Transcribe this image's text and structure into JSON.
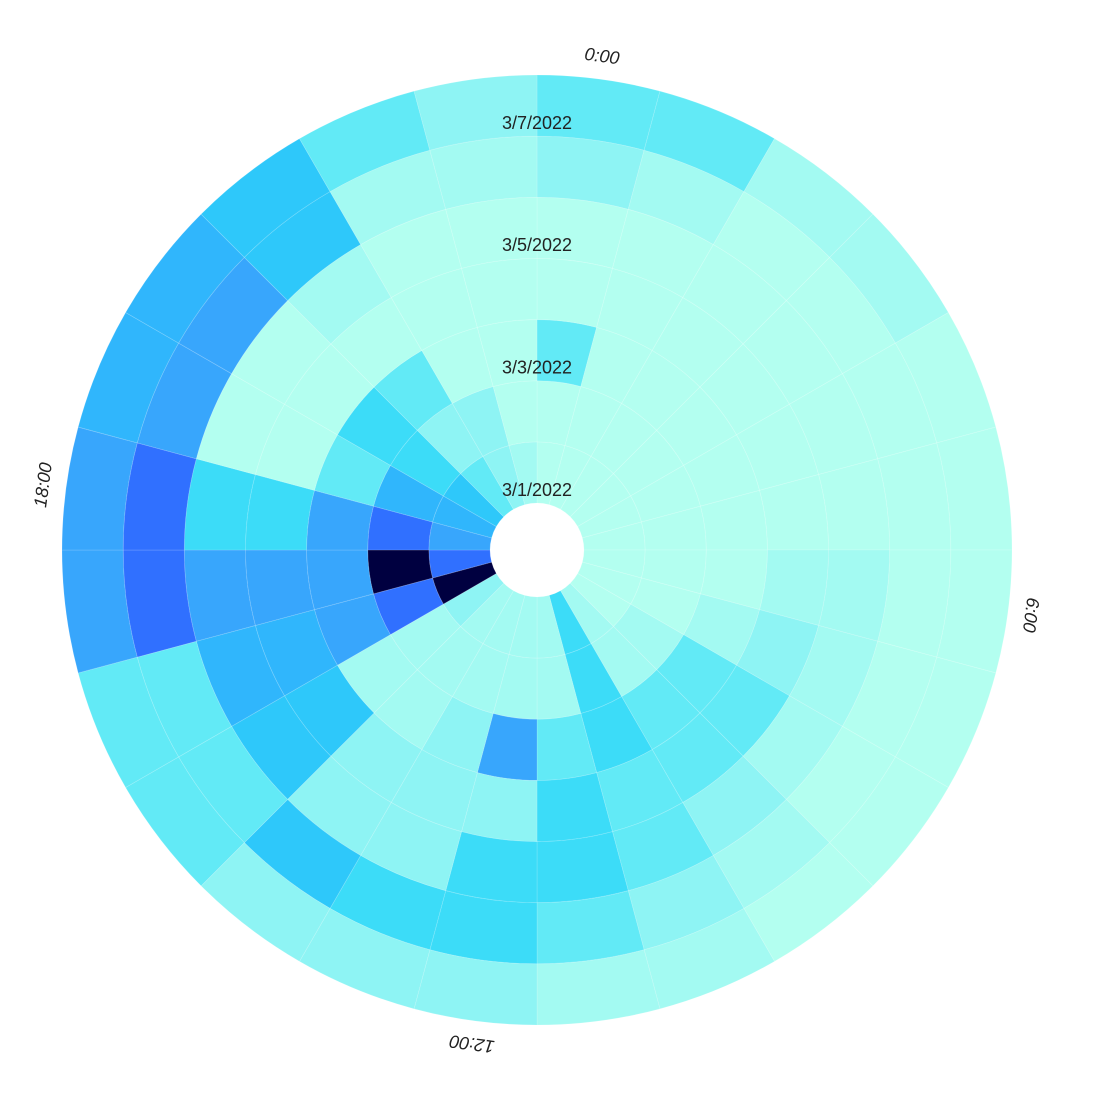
{
  "chart_data": {
    "type": "polar_heatmap",
    "theta_ticks": [
      {
        "value": 0,
        "label": "0:00"
      },
      {
        "value": 6,
        "label": "6:00"
      },
      {
        "value": 12,
        "label": "12:00"
      },
      {
        "value": 18,
        "label": "18:00"
      }
    ],
    "thetalim": [
      0,
      24
    ],
    "rticks": [
      {
        "value": 0,
        "label": "3/1/2022"
      },
      {
        "value": 2,
        "label": "3/3/2022"
      },
      {
        "value": 4,
        "label": "3/5/2022"
      },
      {
        "value": 6,
        "label": "3/7/2022"
      }
    ],
    "rlim": [
      0,
      7
    ],
    "colorscale": [
      "#b3fff0",
      "#a3faf2",
      "#8ef4f4",
      "#62eaf6",
      "#3cdcf8",
      "#2ec8fa",
      "#30b6fc",
      "#38a6fc",
      "#3070ff",
      "#000040"
    ],
    "z": [
      [
        0,
        0,
        0,
        0,
        0,
        0,
        0,
        0,
        0,
        1,
        4,
        1,
        1,
        1,
        1,
        2,
        9,
        8,
        7,
        6,
        5,
        3,
        2,
        1
      ],
      [
        0,
        0,
        0,
        0,
        0,
        0,
        0,
        0,
        1,
        1,
        4,
        1,
        1,
        1,
        1,
        1,
        8,
        9,
        8,
        6,
        4,
        2,
        2,
        0
      ],
      [
        3,
        0,
        0,
        0,
        0,
        0,
        0,
        1,
        3,
        3,
        4,
        3,
        7,
        2,
        1,
        1,
        7,
        7,
        7,
        3,
        4,
        3,
        0,
        0
      ],
      [
        0,
        0,
        0,
        0,
        0,
        0,
        1,
        2,
        3,
        3,
        3,
        4,
        2,
        2,
        2,
        5,
        6,
        7,
        4,
        0,
        0,
        0,
        0,
        0
      ],
      [
        0,
        0,
        0,
        0,
        0,
        0,
        1,
        1,
        1,
        2,
        3,
        4,
        4,
        2,
        2,
        5,
        6,
        7,
        4,
        0,
        0,
        1,
        0,
        0
      ],
      [
        2,
        1,
        0,
        0,
        0,
        0,
        0,
        0,
        0,
        1,
        2,
        3,
        4,
        4,
        5,
        3,
        3,
        8,
        8,
        7,
        7,
        5,
        1,
        1
      ],
      [
        3,
        3,
        1,
        1,
        0,
        0,
        0,
        0,
        0,
        0,
        1,
        1,
        2,
        2,
        2,
        3,
        3,
        7,
        7,
        6,
        6,
        5,
        3,
        2
      ]
    ]
  }
}
